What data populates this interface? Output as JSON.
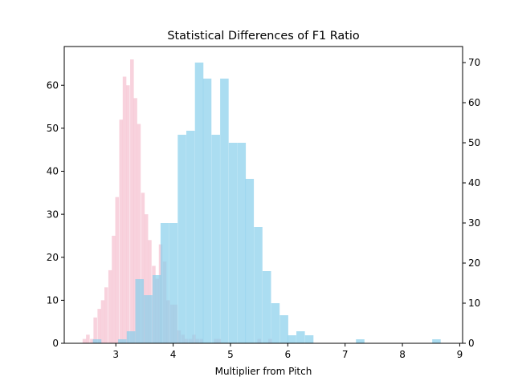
{
  "chart_data": {
    "type": "histogram",
    "title": "Statistical Differences of F1 Ratio",
    "xlabel": "Multiplier from Pitch",
    "ylabel_left": "",
    "ylabel_right": "",
    "xlim": [
      2.1,
      9.05
    ],
    "ylim_left": [
      0,
      69
    ],
    "ylim_right": [
      0,
      74
    ],
    "x_ticks": [
      3,
      4,
      5,
      6,
      7,
      8,
      9
    ],
    "y_ticks_left": [
      0,
      10,
      20,
      30,
      40,
      50,
      60
    ],
    "y_ticks_right": [
      0,
      10,
      20,
      30,
      40,
      50,
      60,
      70
    ],
    "grid": false,
    "series": [
      {
        "axis": "left",
        "color": "#f4b6c8",
        "opacity": 0.62,
        "bin_width": 0.0635,
        "bins_start": [
          2.42,
          2.48,
          2.55,
          2.61,
          2.68,
          2.74,
          2.8,
          2.87,
          2.93,
          2.99,
          3.06,
          3.12,
          3.18,
          3.25,
          3.31,
          3.37,
          3.44,
          3.5,
          3.56,
          3.63,
          3.69,
          3.75,
          3.82,
          3.88,
          3.95,
          4.01,
          4.07,
          4.14,
          4.2,
          4.27,
          4.33,
          4.39,
          4.46,
          4.52,
          4.58,
          4.65,
          4.71,
          4.77,
          4.84,
          4.9,
          4.97,
          5.03,
          5.09,
          5.16,
          5.22,
          5.28,
          5.35,
          5.41,
          5.47,
          5.54,
          5.6,
          5.66,
          5.73
        ],
        "counts": [
          1,
          2,
          1,
          6,
          8,
          10,
          13,
          17,
          25,
          34,
          52,
          62,
          60,
          66,
          57,
          51,
          35,
          30,
          24,
          18,
          15,
          23,
          19,
          10,
          9,
          9,
          3,
          2,
          1,
          1,
          2,
          1,
          1,
          0,
          0,
          0,
          1,
          1,
          0,
          0,
          0,
          0,
          0,
          0,
          0,
          0,
          0,
          0,
          1,
          0,
          0,
          1,
          0
        ]
      },
      {
        "axis": "right",
        "color": "#87ceeb",
        "opacity": 0.7,
        "bin_width": 0.1478,
        "bins_start": [
          2.6,
          2.75,
          2.9,
          3.04,
          3.19,
          3.34,
          3.49,
          3.64,
          3.78,
          3.93,
          4.08,
          4.23,
          4.38,
          4.52,
          4.67,
          4.82,
          4.97,
          5.12,
          5.26,
          5.41,
          5.56,
          5.71,
          5.86,
          6.0,
          6.15,
          6.3,
          6.45,
          6.6,
          6.74,
          6.89,
          7.04,
          7.19,
          7.34,
          7.48,
          7.63,
          7.78,
          7.93,
          8.08,
          8.22,
          8.37,
          8.52,
          8.67
        ],
        "counts": [
          1,
          0,
          0,
          1,
          3,
          16,
          12,
          17,
          30,
          30,
          52,
          53,
          70,
          66,
          52,
          66,
          50,
          50,
          41,
          29,
          18,
          10,
          7,
          2,
          3,
          2,
          0,
          0,
          0,
          0,
          0,
          1,
          0,
          0,
          0,
          0,
          0,
          0,
          0,
          0,
          1,
          0
        ]
      }
    ]
  }
}
